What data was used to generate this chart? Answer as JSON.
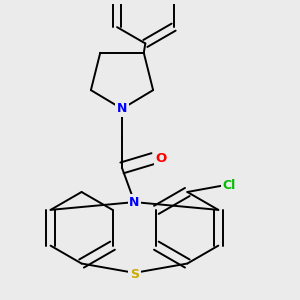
{
  "bg_color": "#ebebeb",
  "bond_color": "#000000",
  "bond_width": 1.4,
  "atom_colors": {
    "N": "#0000ff",
    "S": "#ccaa00",
    "O": "#ff0000",
    "Cl": "#00bb00",
    "C": "#000000"
  },
  "fig_width": 3.0,
  "fig_height": 3.0,
  "dpi": 100
}
